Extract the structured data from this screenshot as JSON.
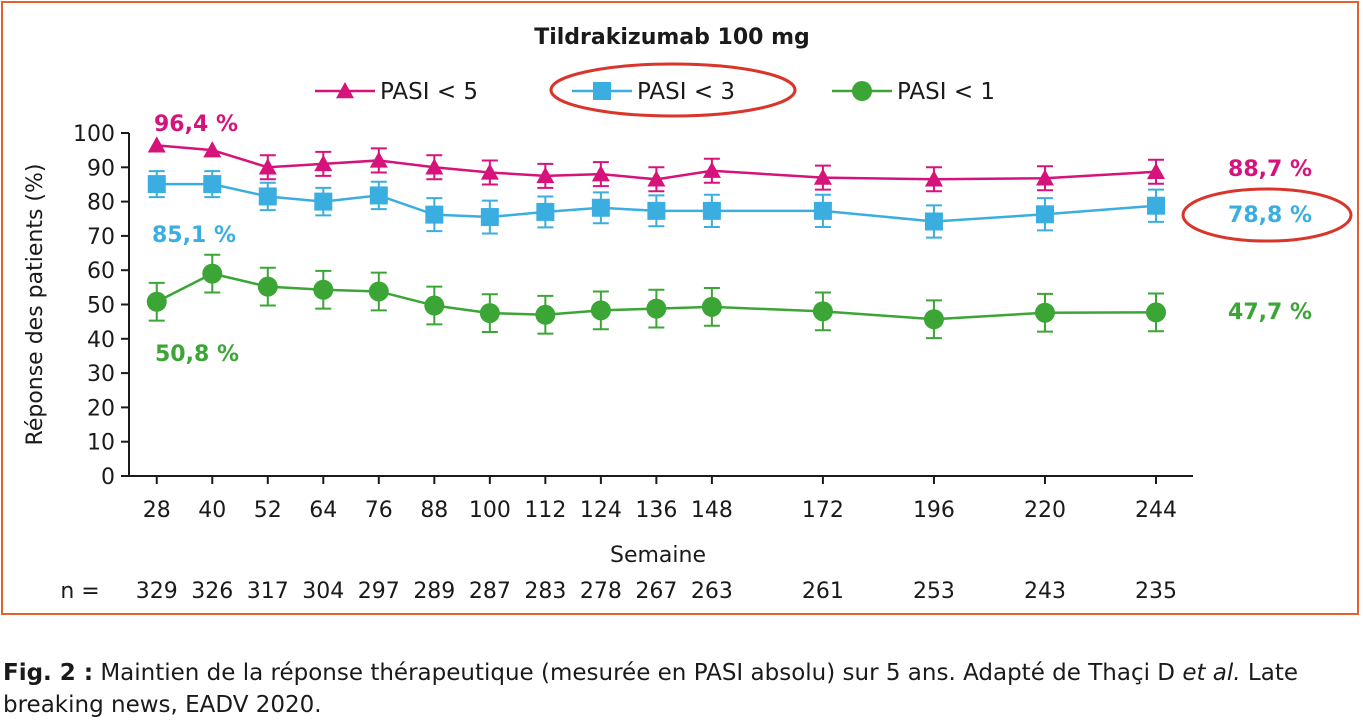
{
  "chart_data": {
    "type": "line",
    "title": "Tildrakizumab 100 mg",
    "xlabel": "Semaine",
    "ylabel": "Réponse des patients (%)",
    "ylim": [
      0,
      100
    ],
    "yticks": [
      0,
      10,
      20,
      30,
      40,
      50,
      60,
      70,
      80,
      90,
      100
    ],
    "x": [
      28,
      40,
      52,
      64,
      76,
      88,
      100,
      112,
      124,
      136,
      148,
      172,
      196,
      220,
      244
    ],
    "grid": false,
    "legend_position": "top",
    "n_label": "n =",
    "n_values": [
      "329",
      "326",
      "317",
      "304",
      "297",
      "289",
      "287",
      "283",
      "278",
      "267",
      "263",
      "261",
      "253",
      "243",
      "235"
    ],
    "series": [
      {
        "name": "PASI < 5",
        "marker": "triangle",
        "color": "#d6127b",
        "values": [
          96.4,
          95,
          90,
          91,
          92,
          90,
          88.5,
          87.5,
          88,
          86.5,
          89,
          87,
          86.5,
          86.8,
          88.7
        ],
        "errors": [
          0,
          0,
          3.5,
          3.5,
          3.5,
          3.5,
          3.5,
          3.5,
          3.5,
          3.5,
          3.5,
          3.5,
          3.5,
          3.5,
          3.5
        ],
        "start_label": "96,4 %",
        "end_label": "88,7 %"
      },
      {
        "name": "PASI < 3",
        "marker": "square",
        "color": "#3aaee0",
        "values": [
          85.1,
          85.1,
          81.5,
          80,
          81.8,
          76.2,
          75.5,
          77,
          78.2,
          77.3,
          77.3,
          77.3,
          74.2,
          76.3,
          78.8
        ],
        "errors": [
          3.8,
          3.8,
          4,
          4,
          4,
          4.8,
          4.8,
          4.5,
          4.5,
          4.5,
          4.7,
          4.7,
          4.7,
          4.7,
          4.7
        ],
        "start_label": "85,1 %",
        "end_label": "78,8 %"
      },
      {
        "name": "PASI < 1",
        "marker": "circle",
        "color": "#3ba535",
        "values": [
          50.8,
          59,
          55.2,
          54.3,
          53.8,
          49.7,
          47.5,
          47,
          48.3,
          48.8,
          49.3,
          48,
          45.7,
          47.6,
          47.7
        ],
        "errors": [
          5.5,
          5.5,
          5.5,
          5.5,
          5.5,
          5.5,
          5.5,
          5.5,
          5.5,
          5.5,
          5.5,
          5.5,
          5.5,
          5.5,
          5.5
        ],
        "start_label": "50,8 %",
        "end_label": "47,7 %"
      }
    ],
    "highlight": [
      "PASI < 3",
      "78,8 %"
    ],
    "highlight_color": "#d9352b"
  },
  "caption": {
    "fig_label": "Fig. 2 :",
    "text_before": " Maintien de la réponse thérapeutique (mesurée en PASI absolu) sur 5 ans. Adapté de Thaçi D ",
    "italic": "et al.",
    "text_after": " Late breaking news, EADV 2020."
  }
}
